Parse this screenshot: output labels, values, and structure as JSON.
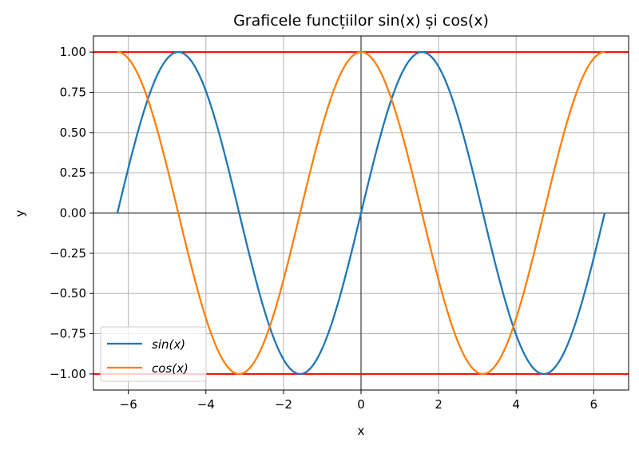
{
  "chart_data": {
    "type": "line",
    "title": "Graficele funcțiilor sin(x) și cos(x)",
    "xlabel": "x",
    "ylabel": "y",
    "xlim": [
      -6.9,
      6.9
    ],
    "ylim": [
      -1.1,
      1.1
    ],
    "xticks": [
      -6,
      -4,
      -2,
      0,
      2,
      4,
      6
    ],
    "xtick_labels": [
      "−6",
      "−4",
      "−2",
      "0",
      "2",
      "4",
      "6"
    ],
    "yticks": [
      1.0,
      0.75,
      0.5,
      0.25,
      0.0,
      -0.25,
      -0.5,
      -0.75,
      -1.0
    ],
    "ytick_labels": [
      "1.00",
      "0.75",
      "0.50",
      "0.25",
      "0.00",
      "−0.25",
      "−0.50",
      "−0.75",
      "−1.00"
    ],
    "grid": true,
    "legend_position": "lower-left",
    "x_domain": [
      -6.2832,
      6.2832
    ],
    "series": [
      {
        "name": "sin(x)",
        "function": "sin",
        "color": "#1f77b4",
        "points": [
          [
            -6.2832,
            0.0
          ],
          [
            -5.4978,
            0.7071
          ],
          [
            -4.7124,
            1.0
          ],
          [
            -3.927,
            0.7071
          ],
          [
            -3.1416,
            0.0
          ],
          [
            -2.3562,
            -0.7071
          ],
          [
            -1.5708,
            -1.0
          ],
          [
            -0.7854,
            -0.7071
          ],
          [
            0.0,
            0.0
          ],
          [
            0.7854,
            0.7071
          ],
          [
            1.5708,
            1.0
          ],
          [
            2.3562,
            0.7071
          ],
          [
            3.1416,
            0.0
          ],
          [
            3.927,
            -0.7071
          ],
          [
            4.7124,
            -1.0
          ],
          [
            5.4978,
            -0.7071
          ],
          [
            6.2832,
            0.0
          ]
        ]
      },
      {
        "name": "cos(x)",
        "function": "cos",
        "color": "#ff7f0e",
        "points": [
          [
            -6.2832,
            1.0
          ],
          [
            -5.4978,
            0.7071
          ],
          [
            -4.7124,
            0.0
          ],
          [
            -3.927,
            -0.7071
          ],
          [
            -3.1416,
            -1.0
          ],
          [
            -2.3562,
            -0.7071
          ],
          [
            -1.5708,
            0.0
          ],
          [
            -0.7854,
            0.7071
          ],
          [
            0.0,
            1.0
          ],
          [
            0.7854,
            0.7071
          ],
          [
            1.5708,
            0.0
          ],
          [
            2.3562,
            -0.7071
          ],
          [
            3.1416,
            -1.0
          ],
          [
            3.927,
            -0.7071
          ],
          [
            4.7124,
            0.0
          ],
          [
            5.4978,
            0.7071
          ],
          [
            6.2832,
            1.0
          ]
        ]
      }
    ],
    "reference_lines": {
      "horizontal_red": [
        1.0,
        -1.0
      ],
      "red_color": "#ff0000",
      "axis_lines_at_zero": true,
      "axis_line_color": "#000000"
    },
    "legend": {
      "entries": [
        "$sin(x)$",
        "$cos(x)$"
      ],
      "display": [
        "sin(x)",
        "cos(x)"
      ]
    }
  }
}
